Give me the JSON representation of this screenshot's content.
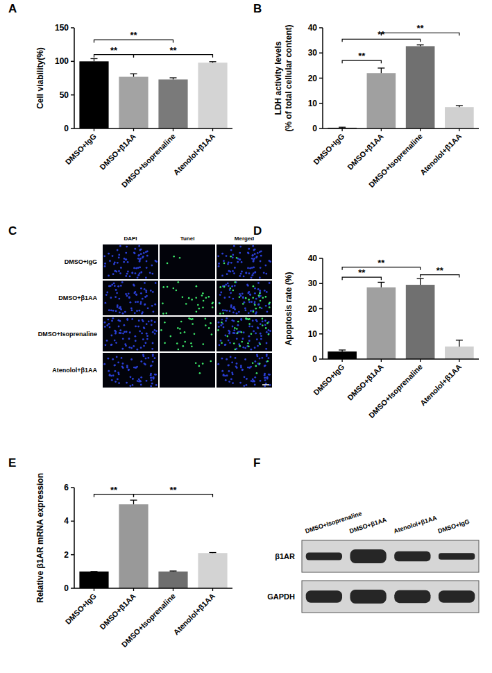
{
  "chart_data": [
    {
      "type": "bar",
      "title": "A",
      "y_label": [
        "Cell viability(%)"
      ],
      "categories": [
        "DMSO+IgG",
        "DMSO+β1AA",
        "DMSO+Isoprenaline",
        "Atenolol+β1AA"
      ],
      "values": [
        100,
        77,
        73,
        98
      ],
      "errors": [
        4,
        4.5,
        2.5,
        1.5
      ],
      "colors": [
        "#000000",
        "#a3a3a3",
        "#7a7a7a",
        "#d4d4d4"
      ],
      "ylim": [
        0,
        150
      ],
      "yticks": [
        0,
        50,
        100,
        150
      ],
      "significance": [
        {
          "from": 0,
          "to": 1,
          "y": 110,
          "label": "**"
        },
        {
          "from": 1,
          "to": 3,
          "y": 110,
          "label": "**"
        },
        {
          "from": 0,
          "to": 2,
          "y": 132,
          "label": "**"
        }
      ]
    },
    {
      "type": "bar",
      "title": "B",
      "y_label": [
        "LDH activity levels",
        "(% of total cellular content)"
      ],
      "categories": [
        "DMSO+IgG",
        "DMSO+β1AA",
        "DMSO+Isoprenaline",
        "Atenolol+β1AA"
      ],
      "values": [
        0.3,
        22,
        32.7,
        8.5
      ],
      "errors": [
        0.2,
        2,
        0.5,
        0.6
      ],
      "colors": [
        "#000000",
        "#a0a0a0",
        "#707070",
        "#d0d0d0"
      ],
      "ylim": [
        0,
        40
      ],
      "yticks": [
        0,
        10,
        20,
        30,
        40
      ],
      "significance": [
        {
          "from": 0,
          "to": 1,
          "y": 27,
          "label": "**"
        },
        {
          "from": 0,
          "to": 2,
          "y": 35.5,
          "label": "**"
        },
        {
          "from": 1,
          "to": 3,
          "y": 38,
          "label": "**"
        }
      ]
    },
    {
      "type": "bar",
      "title": "D",
      "y_label": [
        "Apoptosis rate (%)"
      ],
      "categories": [
        "DMSO+IgG",
        "DMSO+β1AA",
        "DMSO+Isoprenaline",
        "Atenolol+β1AA"
      ],
      "values": [
        3,
        28.5,
        29.5,
        5
      ],
      "errors": [
        0.6,
        2,
        2.5,
        2.5
      ],
      "colors": [
        "#000000",
        "#a0a0a0",
        "#707070",
        "#d0d0d0"
      ],
      "ylim": [
        0,
        40
      ],
      "yticks": [
        0,
        10,
        20,
        30,
        40
      ],
      "significance": [
        {
          "from": 0,
          "to": 1,
          "y": 32.5,
          "label": "**"
        },
        {
          "from": 0,
          "to": 2,
          "y": 36.5,
          "label": "**"
        },
        {
          "from": 2,
          "to": 3,
          "y": 33.5,
          "label": "**"
        }
      ]
    },
    {
      "type": "bar",
      "title": "E",
      "y_label": [
        "Relative β1AR mRNA expression"
      ],
      "categories": [
        "DMSO+IgG",
        "DMSO+β1AA",
        "DMSO+Isoprenaline",
        "Atenolol+β1AA"
      ],
      "values": [
        1,
        5,
        1,
        2.1
      ],
      "errors": [
        0,
        0.25,
        0.03,
        0.03
      ],
      "colors": [
        "#000000",
        "#999999",
        "#6e6e6e",
        "#d3d3d3"
      ],
      "ylim": [
        0,
        6
      ],
      "yticks": [
        0,
        2,
        4,
        6
      ],
      "significance": [
        {
          "from": 0,
          "to": 1,
          "y": 5.6,
          "label": "**"
        },
        {
          "from": 1,
          "to": 3,
          "y": 5.6,
          "label": "**"
        }
      ]
    }
  ],
  "image_panel": {
    "title": "C",
    "columns": [
      "DAPI",
      "Tunel",
      "Merged"
    ],
    "rows": [
      "DMSO+IgG",
      "DMSO+β1AA",
      "DMSO+Isoprenaline",
      "Atenolol+β1AA"
    ]
  },
  "blot": {
    "title": "F",
    "lanes": [
      "DMSO+Isoprenaline",
      "DMSO+β1AA",
      "Atenolol+β1AA",
      "DMSO+IgG"
    ],
    "rows": [
      {
        "name": "β1AR",
        "intensity": [
          0.45,
          1,
          0.65,
          0.35
        ]
      },
      {
        "name": "GAPDH",
        "intensity": [
          0.85,
          1,
          0.9,
          0.85
        ]
      }
    ]
  }
}
